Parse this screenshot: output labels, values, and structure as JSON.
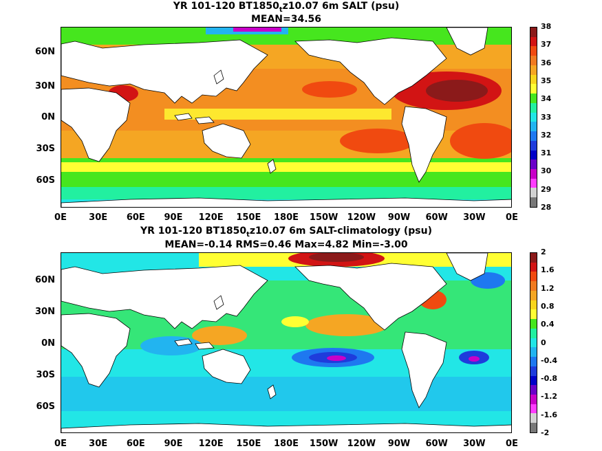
{
  "panel_top": {
    "title": "YR 101-120 BT1850",
    "title_sub": "t",
    "title_rest": "z10.07 6m SALT (psu)",
    "subtitle": "MEAN=34.56",
    "colorbar": {
      "labels": [
        "38",
        "37",
        "36",
        "35",
        "34",
        "33",
        "32",
        "31",
        "30",
        "29",
        "28"
      ],
      "colors": [
        "#8b1a1a",
        "#d21414",
        "#f04a10",
        "#f07a20",
        "#f5a623",
        "#f8d51c",
        "#ffff33",
        "#46e61e",
        "#22f0a0",
        "#22e6e6",
        "#22b4f0",
        "#1e78f0",
        "#1e3cdc",
        "#0000c8",
        "#6a00c8",
        "#c800c8",
        "#ff3cff",
        "#d2d2d2",
        "#787878"
      ]
    }
  },
  "panel_bottom": {
    "title": "YR 101-120 BT1850",
    "title_sub": "t",
    "title_rest": "z10.07 6m SALT-climatology (psu)",
    "subtitle": "MEAN=-0.14   RMS=0.46   Max=4.82   Min=-3.00",
    "colorbar": {
      "labels": [
        "2",
        "1.6",
        "1.2",
        "0.8",
        "0.4",
        "0",
        "-0.4",
        "-0.8",
        "-1.2",
        "-1.6",
        "-2"
      ],
      "colors": [
        "#8b1a1a",
        "#d21414",
        "#f04a10",
        "#f07a20",
        "#f5a623",
        "#f8d51c",
        "#ffff33",
        "#46e61e",
        "#22f0a0",
        "#22e6e6",
        "#22b4f0",
        "#1e78f0",
        "#1e3cdc",
        "#0000c8",
        "#6a00c8",
        "#c800c8",
        "#ff3cff",
        "#d2d2d2",
        "#787878"
      ]
    }
  },
  "axes": {
    "y_labels": [
      "60N",
      "30N",
      "0N",
      "30S",
      "60S"
    ],
    "x_labels": [
      "0E",
      "30E",
      "60E",
      "90E",
      "120E",
      "150E",
      "180E",
      "150W",
      "120W",
      "90W",
      "60W",
      "30W",
      "0E"
    ]
  },
  "map_colors": {
    "land": "#ffffff",
    "coast": "#000000",
    "top_base": "#f5a623",
    "bottom_base": "#22e6e6"
  }
}
